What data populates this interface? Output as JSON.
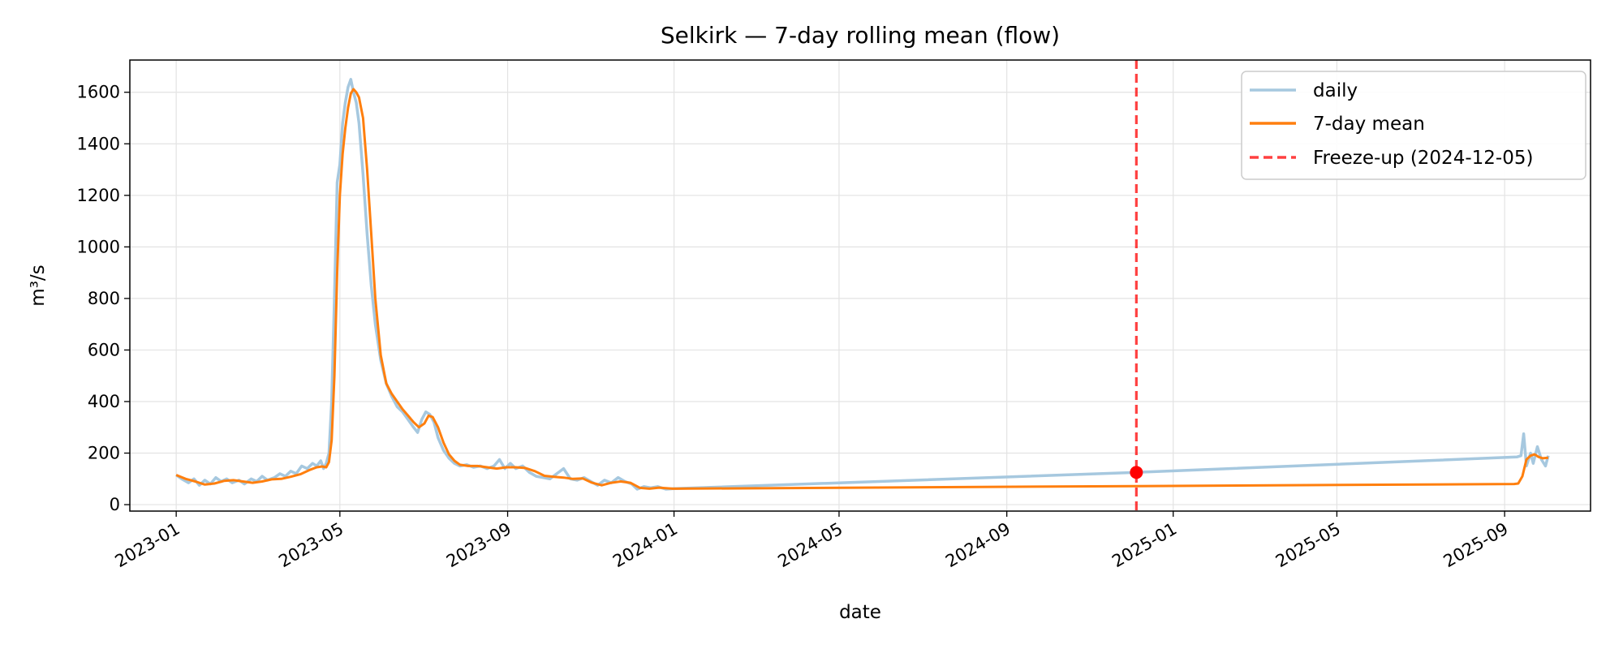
{
  "chart_data": {
    "type": "line",
    "title": "Selkirk — 7-day rolling mean (flow)",
    "xlabel": "date",
    "ylabel": "m³/s",
    "x_range": [
      "2022-11-28",
      "2025-11-03"
    ],
    "ylim": [
      -25,
      1725
    ],
    "x_ticks": [
      "2023-01",
      "2023-05",
      "2023-09",
      "2024-01",
      "2024-05",
      "2024-09",
      "2025-01",
      "2025-05",
      "2025-09"
    ],
    "y_ticks": [
      0,
      200,
      400,
      600,
      800,
      1000,
      1200,
      1400,
      1600
    ],
    "grid": true,
    "legend_position": "top-right",
    "series": [
      {
        "name": "daily",
        "color": "#a6c8df",
        "points": [
          [
            "2023-01-01",
            115
          ],
          [
            "2023-01-05",
            100
          ],
          [
            "2023-01-10",
            85
          ],
          [
            "2023-01-14",
            100
          ],
          [
            "2023-01-18",
            75
          ],
          [
            "2023-01-22",
            95
          ],
          [
            "2023-01-26",
            80
          ],
          [
            "2023-01-30",
            105
          ],
          [
            "2023-02-03",
            90
          ],
          [
            "2023-02-07",
            100
          ],
          [
            "2023-02-11",
            85
          ],
          [
            "2023-02-16",
            95
          ],
          [
            "2023-02-20",
            80
          ],
          [
            "2023-02-25",
            100
          ],
          [
            "2023-03-01",
            90
          ],
          [
            "2023-03-05",
            110
          ],
          [
            "2023-03-09",
            95
          ],
          [
            "2023-03-14",
            105
          ],
          [
            "2023-03-18",
            120
          ],
          [
            "2023-03-22",
            110
          ],
          [
            "2023-03-26",
            130
          ],
          [
            "2023-03-30",
            120
          ],
          [
            "2023-04-03",
            150
          ],
          [
            "2023-04-07",
            140
          ],
          [
            "2023-04-11",
            160
          ],
          [
            "2023-04-14",
            150
          ],
          [
            "2023-04-17",
            170
          ],
          [
            "2023-04-19",
            140
          ],
          [
            "2023-04-21",
            160
          ],
          [
            "2023-04-23",
            200
          ],
          [
            "2023-04-25",
            400
          ],
          [
            "2023-04-27",
            800
          ],
          [
            "2023-04-29",
            1250
          ],
          [
            "2023-05-01",
            1320
          ],
          [
            "2023-05-03",
            1480
          ],
          [
            "2023-05-05",
            1560
          ],
          [
            "2023-05-07",
            1620
          ],
          [
            "2023-05-09",
            1650
          ],
          [
            "2023-05-11",
            1600
          ],
          [
            "2023-05-13",
            1560
          ],
          [
            "2023-05-15",
            1480
          ],
          [
            "2023-05-18",
            1280
          ],
          [
            "2023-05-21",
            1050
          ],
          [
            "2023-05-24",
            850
          ],
          [
            "2023-05-27",
            700
          ],
          [
            "2023-05-31",
            560
          ],
          [
            "2023-06-04",
            470
          ],
          [
            "2023-06-08",
            420
          ],
          [
            "2023-06-12",
            380
          ],
          [
            "2023-06-16",
            360
          ],
          [
            "2023-06-20",
            330
          ],
          [
            "2023-06-24",
            300
          ],
          [
            "2023-06-27",
            280
          ],
          [
            "2023-06-30",
            330
          ],
          [
            "2023-07-03",
            360
          ],
          [
            "2023-07-06",
            350
          ],
          [
            "2023-07-09",
            320
          ],
          [
            "2023-07-12",
            260
          ],
          [
            "2023-07-16",
            210
          ],
          [
            "2023-07-20",
            180
          ],
          [
            "2023-07-24",
            160
          ],
          [
            "2023-07-28",
            150
          ],
          [
            "2023-08-02",
            155
          ],
          [
            "2023-08-07",
            145
          ],
          [
            "2023-08-12",
            150
          ],
          [
            "2023-08-17",
            140
          ],
          [
            "2023-08-22",
            150
          ],
          [
            "2023-08-26",
            175
          ],
          [
            "2023-08-30",
            140
          ],
          [
            "2023-09-03",
            160
          ],
          [
            "2023-09-07",
            140
          ],
          [
            "2023-09-12",
            150
          ],
          [
            "2023-09-17",
            125
          ],
          [
            "2023-09-22",
            110
          ],
          [
            "2023-09-27",
            105
          ],
          [
            "2023-10-02",
            100
          ],
          [
            "2023-10-07",
            120
          ],
          [
            "2023-10-12",
            140
          ],
          [
            "2023-10-17",
            100
          ],
          [
            "2023-10-22",
            95
          ],
          [
            "2023-10-27",
            105
          ],
          [
            "2023-11-01",
            90
          ],
          [
            "2023-11-06",
            75
          ],
          [
            "2023-11-11",
            95
          ],
          [
            "2023-11-16",
            85
          ],
          [
            "2023-11-21",
            105
          ],
          [
            "2023-11-26",
            90
          ],
          [
            "2023-12-01",
            80
          ],
          [
            "2023-12-05",
            60
          ],
          [
            "2023-12-10",
            70
          ],
          [
            "2023-12-15",
            65
          ],
          [
            "2023-12-20",
            70
          ],
          [
            "2023-12-26",
            60
          ],
          [
            "2023-12-31",
            62
          ],
          [
            "2024-12-05",
            125
          ],
          [
            "2025-09-10",
            185
          ],
          [
            "2025-09-13",
            190
          ],
          [
            "2025-09-15",
            275
          ],
          [
            "2025-09-17",
            150
          ],
          [
            "2025-09-20",
            200
          ],
          [
            "2025-09-22",
            160
          ],
          [
            "2025-09-25",
            225
          ],
          [
            "2025-09-28",
            175
          ],
          [
            "2025-10-01",
            150
          ],
          [
            "2025-10-03",
            190
          ]
        ]
      },
      {
        "name": "7-day mean",
        "color": "#ff7f0e",
        "points": [
          [
            "2023-01-01",
            115
          ],
          [
            "2023-01-08",
            100
          ],
          [
            "2023-01-15",
            90
          ],
          [
            "2023-01-22",
            78
          ],
          [
            "2023-01-29",
            82
          ],
          [
            "2023-02-05",
            92
          ],
          [
            "2023-02-12",
            95
          ],
          [
            "2023-02-19",
            90
          ],
          [
            "2023-02-26",
            85
          ],
          [
            "2023-03-05",
            90
          ],
          [
            "2023-03-12",
            98
          ],
          [
            "2023-03-19",
            100
          ],
          [
            "2023-03-26",
            108
          ],
          [
            "2023-04-02",
            118
          ],
          [
            "2023-04-09",
            135
          ],
          [
            "2023-04-14",
            145
          ],
          [
            "2023-04-18",
            148
          ],
          [
            "2023-04-21",
            145
          ],
          [
            "2023-04-23",
            165
          ],
          [
            "2023-04-25",
            250
          ],
          [
            "2023-04-27",
            500
          ],
          [
            "2023-04-29",
            900
          ],
          [
            "2023-05-01",
            1200
          ],
          [
            "2023-05-03",
            1360
          ],
          [
            "2023-05-05",
            1460
          ],
          [
            "2023-05-07",
            1540
          ],
          [
            "2023-05-09",
            1595
          ],
          [
            "2023-05-11",
            1612
          ],
          [
            "2023-05-13",
            1600
          ],
          [
            "2023-05-15",
            1580
          ],
          [
            "2023-05-18",
            1500
          ],
          [
            "2023-05-21",
            1300
          ],
          [
            "2023-05-24",
            1050
          ],
          [
            "2023-05-27",
            800
          ],
          [
            "2023-05-31",
            580
          ],
          [
            "2023-06-04",
            470
          ],
          [
            "2023-06-08",
            430
          ],
          [
            "2023-06-12",
            400
          ],
          [
            "2023-06-16",
            370
          ],
          [
            "2023-06-20",
            345
          ],
          [
            "2023-06-24",
            320
          ],
          [
            "2023-06-28",
            300
          ],
          [
            "2023-07-02",
            315
          ],
          [
            "2023-07-05",
            345
          ],
          [
            "2023-07-08",
            340
          ],
          [
            "2023-07-12",
            300
          ],
          [
            "2023-07-16",
            240
          ],
          [
            "2023-07-20",
            195
          ],
          [
            "2023-07-24",
            170
          ],
          [
            "2023-07-28",
            155
          ],
          [
            "2023-08-03",
            150
          ],
          [
            "2023-08-10",
            150
          ],
          [
            "2023-08-17",
            145
          ],
          [
            "2023-08-24",
            140
          ],
          [
            "2023-08-31",
            145
          ],
          [
            "2023-09-07",
            145
          ],
          [
            "2023-09-14",
            142
          ],
          [
            "2023-09-21",
            130
          ],
          [
            "2023-09-28",
            112
          ],
          [
            "2023-10-05",
            108
          ],
          [
            "2023-10-12",
            105
          ],
          [
            "2023-10-19",
            100
          ],
          [
            "2023-10-26",
            102
          ],
          [
            "2023-11-02",
            85
          ],
          [
            "2023-11-09",
            75
          ],
          [
            "2023-11-16",
            85
          ],
          [
            "2023-11-23",
            90
          ],
          [
            "2023-11-30",
            85
          ],
          [
            "2023-12-07",
            65
          ],
          [
            "2023-12-14",
            62
          ],
          [
            "2023-12-21",
            66
          ],
          [
            "2023-12-31",
            62
          ],
          [
            "2024-12-05",
            72
          ],
          [
            "2025-09-08",
            80
          ],
          [
            "2025-09-11",
            82
          ],
          [
            "2025-09-14",
            110
          ],
          [
            "2025-09-17",
            175
          ],
          [
            "2025-09-20",
            190
          ],
          [
            "2025-09-23",
            195
          ],
          [
            "2025-09-26",
            185
          ],
          [
            "2025-09-29",
            180
          ],
          [
            "2025-10-03",
            182
          ]
        ]
      }
    ],
    "event_line": {
      "label": "Freeze-up (2024-12-05)",
      "date": "2024-12-05",
      "color": "#ff0000",
      "style": "dashed"
    },
    "event_marker": {
      "date": "2024-12-05",
      "value": 125,
      "color": "#ff0000"
    }
  }
}
